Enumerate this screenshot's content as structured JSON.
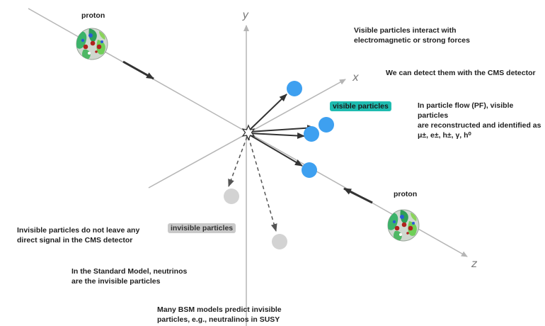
{
  "axes": {
    "x": "x",
    "y": "y",
    "z": "z"
  },
  "protons": [
    {
      "label": "proton"
    },
    {
      "label": "proton"
    }
  ],
  "tags": {
    "visible": "visible particles",
    "invisible": "invisible particles"
  },
  "notes": {
    "visible_interact_1": "Visible particles interact with",
    "visible_interact_2": "electromagnetic or strong forces",
    "detect": "We can detect them with the CMS detector",
    "pf_1": "In particle flow (PF), visible particles",
    "pf_2": "are reconstructed and identified as",
    "pf_3": "μ±, e±, h±, γ, h⁰",
    "invisible_1": "Invisible particles do not leave any",
    "invisible_2": "direct signal in the CMS detector",
    "sm_1": "In the Standard Model, neutrinos",
    "sm_2": "are the invisible particles",
    "bsm_1": "Many BSM models predict invisible",
    "bsm_2": "particles, e.g., neutralinos in SUSY"
  },
  "colors": {
    "axis": "#b5b5b5",
    "visible_particle": "#3ea0f0",
    "invisible_particle": "#d3d3d3",
    "visible_tag": "#1fbcb0",
    "invisible_tag": "#c9c9c9",
    "proton_green": "#3cb36a",
    "quark_red": "#b0221d",
    "quark_blue": "#2a5bd6"
  }
}
